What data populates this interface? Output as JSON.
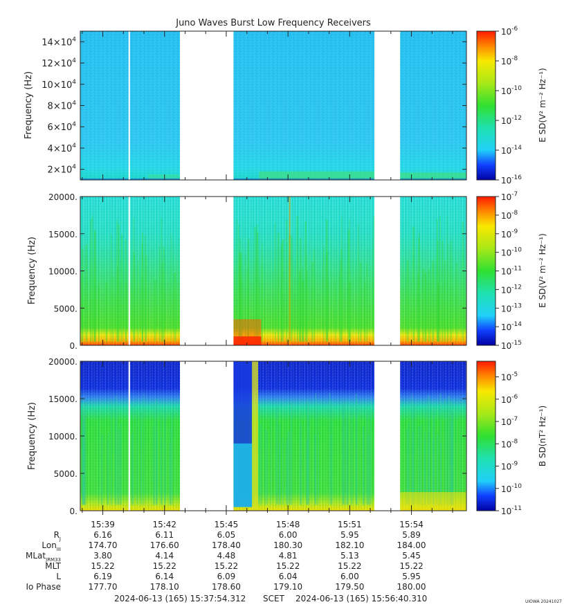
{
  "title": "Juno Waves Burst Low Frequency Receivers",
  "credit": "UIOWA 20241027",
  "footer": {
    "start": "2024-06-13 (165) 15:37:54.312",
    "scet": "SCET",
    "end": "2024-06-13 (165) 15:56:40.310"
  },
  "colors": {
    "gap": "#ffffff",
    "background_e_high": "#28c8f0",
    "frame": "#222222"
  },
  "ephemeris": {
    "labels": [
      {
        "main": "R",
        "sub": "J"
      },
      {
        "main": "Lon",
        "sub": "III"
      },
      {
        "main": "MLat",
        "sub": "JRM33"
      },
      {
        "main": "MLT",
        "sub": ""
      },
      {
        "main": "L",
        "sub": ""
      },
      {
        "main": "Io Phase",
        "sub": ""
      }
    ],
    "times": [
      "15:39",
      "15:42",
      "15:45",
      "15:48",
      "15:51",
      "15:54"
    ],
    "rows": [
      [
        "6.16",
        "6.11",
        "6.05",
        "6.00",
        "5.95",
        "5.89"
      ],
      [
        "174.70",
        "176.60",
        "178.40",
        "180.30",
        "182.10",
        "184.00"
      ],
      [
        "3.80",
        "4.14",
        "4.48",
        "4.81",
        "5.13",
        "5.45"
      ],
      [
        "15.22",
        "15.22",
        "15.22",
        "15.22",
        "15.22",
        "15.22"
      ],
      [
        "6.19",
        "6.14",
        "6.09",
        "6.04",
        "6.00",
        "5.95"
      ],
      [
        "177.70",
        "178.10",
        "178.60",
        "179.10",
        "179.50",
        "180.00"
      ]
    ]
  },
  "chart_data": [
    {
      "type": "heatmap",
      "title": "Juno Waves Burst Low Frequency Receivers",
      "ylabel": "Frequency (Hz)",
      "ylim": [
        10000,
        150000
      ],
      "yticks": [
        {
          "value": 20000,
          "mant": "2x10",
          "exp": "4"
        },
        {
          "value": 40000,
          "mant": "4x10",
          "exp": "4"
        },
        {
          "value": 60000,
          "mant": "6x10",
          "exp": "4"
        },
        {
          "value": 80000,
          "mant": "8x10",
          "exp": "4"
        },
        {
          "value": 100000,
          "mant": "10x10",
          "exp": "4"
        },
        {
          "value": 120000,
          "mant": "12x10",
          "exp": "4"
        },
        {
          "value": 140000,
          "mant": "14x10",
          "exp": "4"
        }
      ],
      "colorbar": {
        "label": "E SD(V² m⁻² Hz⁻¹)",
        "scale": "log",
        "range_exp": [
          -16,
          -6
        ],
        "ticks_exp": [
          -16,
          -14,
          -12,
          -10,
          -8,
          -6
        ]
      },
      "description": "background ~1e-13; weak band near 15 kHz"
    },
    {
      "type": "heatmap",
      "ylabel": "Frequency (Hz)",
      "ylim": [
        0,
        20000
      ],
      "yticks": [
        {
          "value": 0,
          "label": "0."
        },
        {
          "value": 5000,
          "label": "5000."
        },
        {
          "value": 10000,
          "label": "10000."
        },
        {
          "value": 15000,
          "label": "15000."
        },
        {
          "value": 20000,
          "label": "20000."
        }
      ],
      "colorbar": {
        "label": "E SD(V² m⁻² Hz⁻¹)",
        "scale": "log",
        "range_exp": [
          -15,
          -7
        ],
        "ticks_exp": [
          -15,
          -14,
          -13,
          -12,
          -11,
          -10,
          -9,
          -8,
          -7
        ]
      }
    },
    {
      "type": "heatmap",
      "ylabel": "Frequency (Hz)",
      "ylim": [
        0,
        20000
      ],
      "yticks": [
        {
          "value": 0,
          "label": "0."
        },
        {
          "value": 5000,
          "label": "5000."
        },
        {
          "value": 10000,
          "label": "10000."
        },
        {
          "value": 15000,
          "label": "15000."
        },
        {
          "value": 20000,
          "label": "20000."
        }
      ],
      "colorbar": {
        "label": "B SD(nT² Hz⁻¹)",
        "scale": "log",
        "range_exp": [
          -11,
          -4.3
        ],
        "ticks_exp": [
          -11,
          -10,
          -9,
          -8,
          -7,
          -6,
          -5
        ]
      }
    }
  ],
  "time_axis": {
    "start_min": 37.905,
    "end_min": 56.672,
    "gaps": [
      [
        40.25,
        40.32
      ],
      [
        42.75,
        45.35
      ],
      [
        52.2,
        53.45
      ]
    ],
    "major_ticks_min": [
      39,
      42,
      45,
      48,
      51,
      54
    ]
  }
}
